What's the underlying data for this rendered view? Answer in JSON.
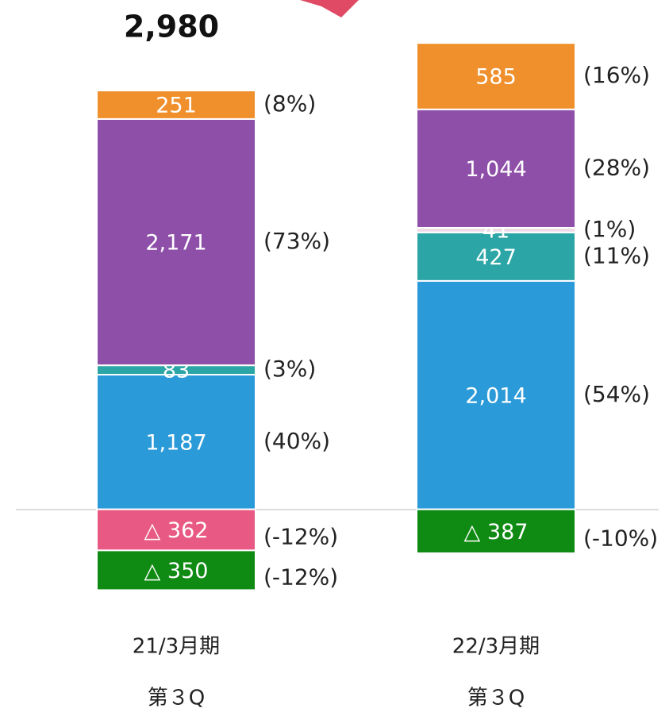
{
  "chart_data": {
    "type": "stacked_bar",
    "categories": [
      [
        "21/3月期",
        "第３Q"
      ],
      [
        "22/3月期",
        "第３Q"
      ]
    ],
    "totals": [
      2980,
      null
    ],
    "total_labels": [
      "2,980",
      null
    ],
    "ylim": [
      -800,
      4490
    ],
    "series": [
      {
        "color": "#2a9ad8",
        "values": [
          1187,
          2014
        ],
        "value_labels": [
          "1,187",
          "2,014"
        ],
        "shares": [
          40,
          54
        ],
        "share_labels": [
          "(40%)",
          "(54%)"
        ]
      },
      {
        "color": "#2ba5a5",
        "values": [
          83,
          427
        ],
        "value_labels": [
          "83",
          "427"
        ],
        "shares": [
          3,
          11
        ],
        "share_labels": [
          "(3%)",
          "(11%)"
        ]
      },
      {
        "color": "#efdbe6",
        "values": [
          null,
          41
        ],
        "value_labels": [
          null,
          "41"
        ],
        "shares": [
          null,
          1
        ],
        "share_labels": [
          null,
          "(1%)"
        ]
      },
      {
        "color": "#8e4fa8",
        "values": [
          2171,
          1044
        ],
        "value_labels": [
          "2,171",
          "1,044"
        ],
        "shares": [
          73,
          28
        ],
        "share_labels": [
          "(73%)",
          "(28%)"
        ]
      },
      {
        "color": "#f0902c",
        "values": [
          251,
          585
        ],
        "value_labels": [
          "251",
          "585"
        ],
        "shares": [
          8,
          16
        ],
        "share_labels": [
          "(8%)",
          "(16%)"
        ]
      },
      {
        "color": "#e85a84",
        "values": [
          -362,
          null
        ],
        "value_labels": [
          "△ 362",
          null
        ],
        "shares": [
          -12,
          null
        ],
        "share_labels": [
          "(-12%)",
          null
        ]
      },
      {
        "color": "#0f8a12",
        "values": [
          -350,
          -387
        ],
        "value_labels": [
          "△ 350",
          "△ 387"
        ],
        "shares": [
          -12,
          -10
        ],
        "share_labels": [
          "(-12%)",
          "(-10%)"
        ]
      }
    ]
  }
}
